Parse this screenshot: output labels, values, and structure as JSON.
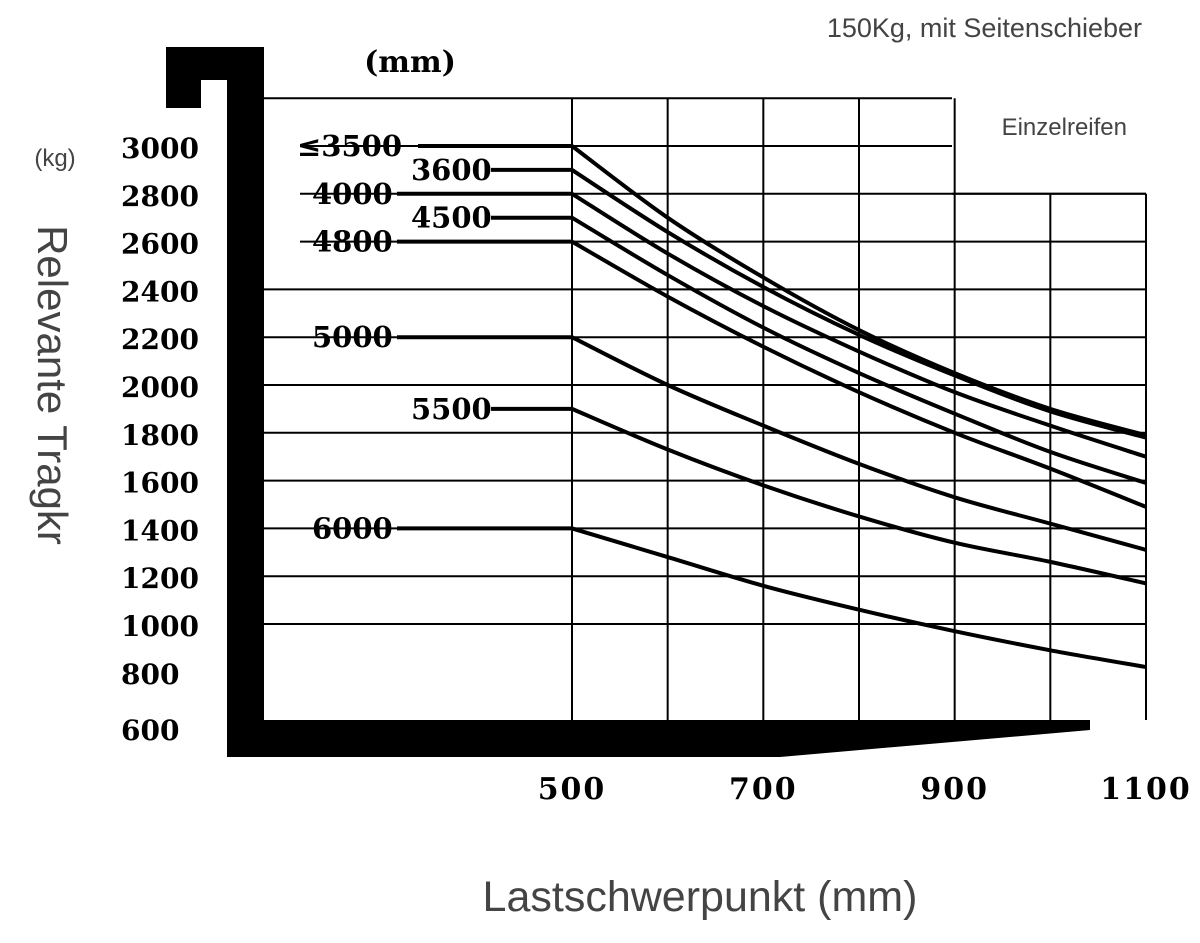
{
  "chart_data": {
    "type": "line",
    "title": "150Kg, mit Seitenschieber",
    "note": "Einzelreifen",
    "unit_label": "(mm)",
    "y_unit": "(kg)",
    "ylabel": "Relevante Tragkr",
    "xlabel": "Lastschwerpunkt (mm)",
    "xlim": [
      180,
      1100
    ],
    "ylim": [
      600,
      3200
    ],
    "y_ticks": [
      "3000",
      "2800",
      "2600",
      "2400",
      "2200",
      "2000",
      "1800",
      "1600",
      "1400",
      "1200",
      "1000",
      "800",
      "600"
    ],
    "x_ticks": [
      "500",
      "700",
      "900",
      "1100"
    ],
    "grid": true,
    "series": [
      {
        "name": "≤3500",
        "x": [
          500,
          600,
          700,
          800,
          900,
          1000,
          1100
        ],
        "y": [
          3000,
          2700,
          2450,
          2230,
          2050,
          1900,
          1790
        ]
      },
      {
        "name": "3600",
        "x": [
          500,
          600,
          700,
          800,
          900,
          1000,
          1100
        ],
        "y": [
          2900,
          2640,
          2410,
          2210,
          2040,
          1890,
          1780
        ]
      },
      {
        "name": "4000",
        "x": [
          500,
          600,
          700,
          800,
          900,
          1000,
          1100
        ],
        "y": [
          2800,
          2550,
          2330,
          2140,
          1970,
          1830,
          1700
        ]
      },
      {
        "name": "4500",
        "x": [
          500,
          600,
          700,
          800,
          900,
          1000,
          1100
        ],
        "y": [
          2700,
          2460,
          2240,
          2050,
          1880,
          1720,
          1590
        ]
      },
      {
        "name": "4800",
        "x": [
          500,
          600,
          700,
          800,
          900,
          1000,
          1100
        ],
        "y": [
          2600,
          2370,
          2160,
          1970,
          1800,
          1650,
          1490
        ]
      },
      {
        "name": "5000",
        "x": [
          500,
          600,
          700,
          800,
          900,
          1000,
          1100
        ],
        "y": [
          2200,
          2000,
          1830,
          1670,
          1530,
          1420,
          1310
        ]
      },
      {
        "name": "5500",
        "x": [
          500,
          600,
          700,
          800,
          900,
          1000,
          1100
        ],
        "y": [
          1900,
          1730,
          1580,
          1450,
          1340,
          1260,
          1170
        ]
      },
      {
        "name": "6000",
        "x": [
          500,
          600,
          700,
          800,
          900,
          1000,
          1100
        ],
        "y": [
          1400,
          1280,
          1160,
          1060,
          970,
          890,
          820
        ]
      }
    ]
  }
}
